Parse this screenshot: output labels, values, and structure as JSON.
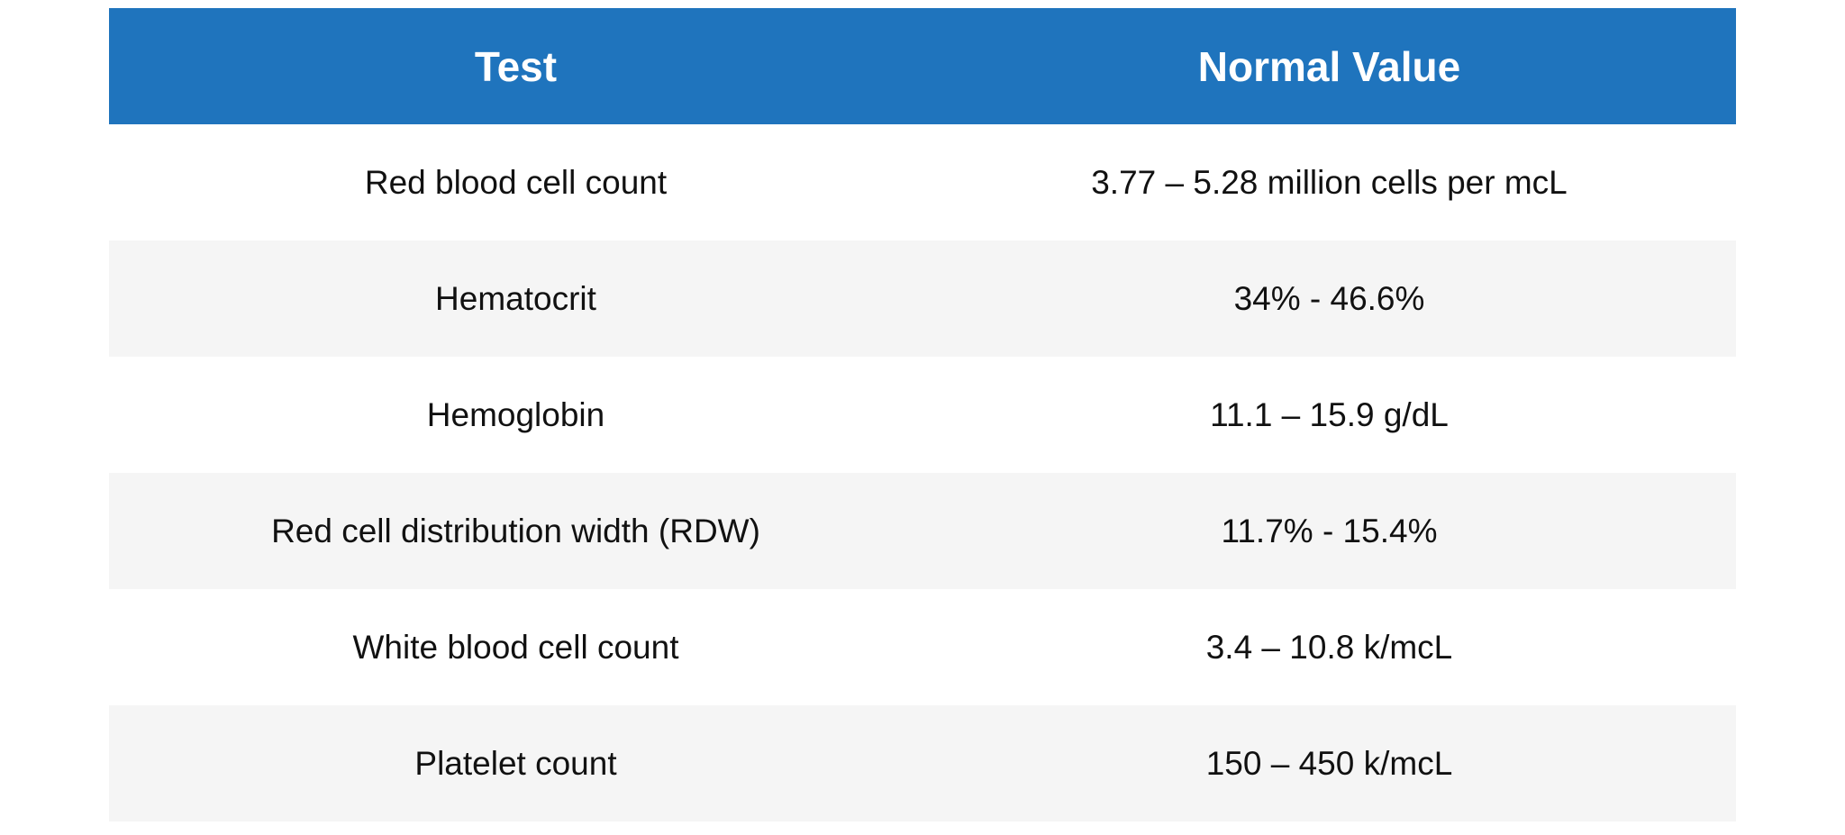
{
  "table": {
    "header_color": "#1f74bd",
    "stripe_color": "#f5f5f5",
    "columns": [
      "Test",
      "Normal Value"
    ],
    "rows": [
      [
        "Red blood cell count",
        "3.77 – 5.28 million cells per mcL"
      ],
      [
        "Hematocrit",
        "34% - 46.6%"
      ],
      [
        "Hemoglobin",
        "11.1 – 15.9 g/dL"
      ],
      [
        "Red cell distribution width (RDW)",
        "11.7% - 15.4%"
      ],
      [
        "White blood cell count",
        "3.4 – 10.8 k/mcL"
      ],
      [
        "Platelet count",
        "150 – 450 k/mcL"
      ]
    ]
  }
}
